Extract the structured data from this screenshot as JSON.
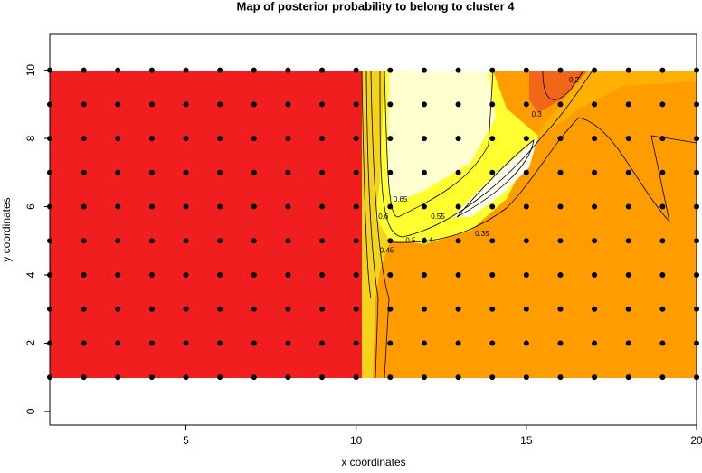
{
  "chart_data": {
    "type": "contour",
    "title": "Map of posterior probability to belong to cluster  4",
    "xlabel": "x coordinates",
    "ylabel": "y coordinates",
    "x": [
      1,
      2,
      3,
      4,
      5,
      6,
      7,
      8,
      9,
      10,
      11,
      12,
      13,
      14,
      15,
      16,
      17,
      18,
      19,
      20
    ],
    "y": [
      1,
      2,
      3,
      4,
      5,
      6,
      7,
      8,
      9,
      10
    ],
    "xlim": [
      1,
      20
    ],
    "ylim": [
      -0.4,
      11.05
    ],
    "xticks": [
      5,
      10,
      15,
      20
    ],
    "yticks": [
      0,
      2,
      4,
      6,
      8,
      10
    ],
    "contours": [
      {
        "level": 0.65,
        "x": 11.3,
        "y": 6.2
      },
      {
        "level": 0.6,
        "x": 10.8,
        "y": 5.7
      },
      {
        "level": 0.55,
        "x": 12.4,
        "y": 5.7
      },
      {
        "level": 0.5,
        "x": 11.6,
        "y": 5.0
      },
      {
        "level": 0.45,
        "x": 10.9,
        "y": 4.7
      },
      {
        "level": 0.4,
        "x": 12.1,
        "y": 5.0
      },
      {
        "level": 0.35,
        "x": 13.7,
        "y": 5.2
      },
      {
        "level": 0.3,
        "x": 15.3,
        "y": 8.7
      },
      {
        "level": 0.2,
        "x": 16.4,
        "y": 9.7
      }
    ]
  }
}
